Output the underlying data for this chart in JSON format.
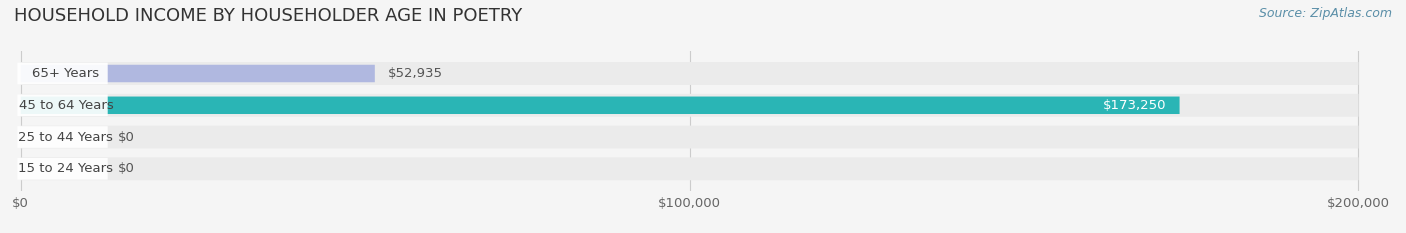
{
  "title": "HOUSEHOLD INCOME BY HOUSEHOLDER AGE IN POETRY",
  "source": "Source: ZipAtlas.com",
  "categories": [
    "15 to 24 Years",
    "25 to 44 Years",
    "45 to 64 Years",
    "65+ Years"
  ],
  "values": [
    0,
    0,
    173250,
    52935
  ],
  "bar_colors": [
    "#a8c8e8",
    "#c8a8c8",
    "#2ab5b5",
    "#b0b8e0"
  ],
  "bar_track_color": "#ebebeb",
  "background_color": "#f5f5f5",
  "label_bg_color": "#ffffff",
  "xlim": [
    0,
    200000
  ],
  "xticks": [
    0,
    100000,
    200000
  ],
  "xtick_labels": [
    "$0",
    "$100,000",
    "$200,000"
  ],
  "value_label_inside_color": "#ffffff",
  "value_label_outside_color": "#555555",
  "title_fontsize": 13,
  "tick_fontsize": 9.5,
  "bar_label_fontsize": 9.5,
  "category_fontsize": 9.5,
  "source_fontsize": 9
}
